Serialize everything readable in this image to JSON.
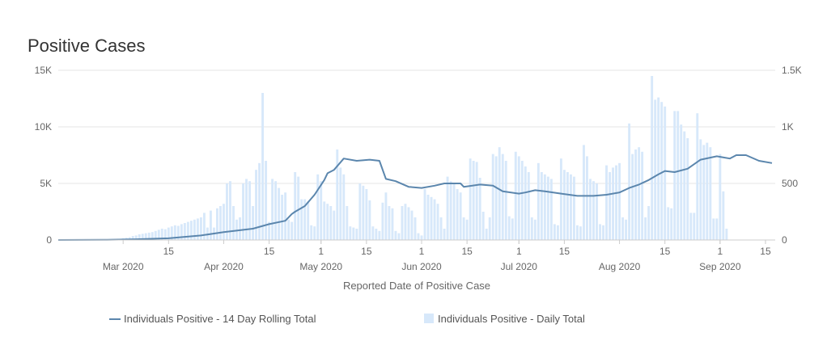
{
  "chart_data": {
    "type": "bar",
    "title": "Positive Cases",
    "xlabel": "Reported Date of Positive Case",
    "x_range": [
      "2020-02-10",
      "2020-09-18"
    ],
    "x_ticks": [
      {
        "date": "2020-03-15",
        "label": "15"
      },
      {
        "date": "2020-04-15",
        "label": "15"
      },
      {
        "date": "2020-05-01",
        "label": "1"
      },
      {
        "date": "2020-05-15",
        "label": "15"
      },
      {
        "date": "2020-06-01",
        "label": "1"
      },
      {
        "date": "2020-06-15",
        "label": "15"
      },
      {
        "date": "2020-07-01",
        "label": "1"
      },
      {
        "date": "2020-07-15",
        "label": "15"
      },
      {
        "date": "2020-08-15",
        "label": "15"
      },
      {
        "date": "2020-09-01",
        "label": "1"
      },
      {
        "date": "2020-09-15",
        "label": "15"
      }
    ],
    "x_month_labels": [
      {
        "date": "2020-03-01",
        "label": "Mar 2020"
      },
      {
        "date": "2020-04-01",
        "label": "Apr 2020"
      },
      {
        "date": "2020-05-01",
        "label": "May 2020"
      },
      {
        "date": "2020-06-01",
        "label": "Jun 2020"
      },
      {
        "date": "2020-07-01",
        "label": "Jul 2020"
      },
      {
        "date": "2020-08-01",
        "label": "Aug 2020"
      },
      {
        "date": "2020-09-01",
        "label": "Sep 2020"
      }
    ],
    "y_left": {
      "min": 0,
      "max": 15000,
      "ticks": [
        0,
        5000,
        10000,
        15000
      ],
      "tick_labels": [
        "0",
        "5K",
        "10K",
        "15K"
      ]
    },
    "y_right": {
      "min": 0,
      "max": 1500,
      "ticks": [
        0,
        500,
        1000,
        1500
      ],
      "tick_labels": [
        "0",
        "500",
        "1K",
        "1.5K"
      ]
    },
    "grid": true,
    "legend_position": "bottom-center",
    "series": [
      {
        "name": "Individuals Positive - 14 Day Rolling Total",
        "type": "line",
        "axis": "left",
        "color": "#5b86ad",
        "points": [
          [
            "2020-02-10",
            0
          ],
          [
            "2020-02-25",
            20
          ],
          [
            "2020-03-05",
            60
          ],
          [
            "2020-03-15",
            150
          ],
          [
            "2020-03-25",
            400
          ],
          [
            "2020-04-01",
            700
          ],
          [
            "2020-04-10",
            1000
          ],
          [
            "2020-04-15",
            1400
          ],
          [
            "2020-04-20",
            1700
          ],
          [
            "2020-04-23",
            2500
          ],
          [
            "2020-04-26",
            3000
          ],
          [
            "2020-04-29",
            4000
          ],
          [
            "2020-04-22",
            2300
          ],
          [
            "2020-05-02",
            5300
          ],
          [
            "2020-05-03",
            5900
          ],
          [
            "2020-05-05",
            6200
          ],
          [
            "2020-05-08",
            7200
          ],
          [
            "2020-05-12",
            7000
          ],
          [
            "2020-05-16",
            7100
          ],
          [
            "2020-05-19",
            7000
          ],
          [
            "2020-05-21",
            5400
          ],
          [
            "2020-05-24",
            5200
          ],
          [
            "2020-05-28",
            4700
          ],
          [
            "2020-06-01",
            4600
          ],
          [
            "2020-06-05",
            4800
          ],
          [
            "2020-06-08",
            5000
          ],
          [
            "2020-06-13",
            5000
          ],
          [
            "2020-06-14",
            4700
          ],
          [
            "2020-06-19",
            4900
          ],
          [
            "2020-06-23",
            4800
          ],
          [
            "2020-06-26",
            4300
          ],
          [
            "2020-07-01",
            4100
          ],
          [
            "2020-07-03",
            4200
          ],
          [
            "2020-07-06",
            4400
          ],
          [
            "2020-07-09",
            4300
          ],
          [
            "2020-07-14",
            4100
          ],
          [
            "2020-07-19",
            3900
          ],
          [
            "2020-07-24",
            3900
          ],
          [
            "2020-07-28",
            4000
          ],
          [
            "2020-08-01",
            4200
          ],
          [
            "2020-08-04",
            4600
          ],
          [
            "2020-08-07",
            4900
          ],
          [
            "2020-08-10",
            5300
          ],
          [
            "2020-08-13",
            5800
          ],
          [
            "2020-08-15",
            6100
          ],
          [
            "2020-08-18",
            6000
          ],
          [
            "2020-08-22",
            6300
          ],
          [
            "2020-08-26",
            7100
          ],
          [
            "2020-08-31",
            7400
          ],
          [
            "2020-09-04",
            7200
          ],
          [
            "2020-09-06",
            7500
          ],
          [
            "2020-09-09",
            7500
          ],
          [
            "2020-09-13",
            7000
          ],
          [
            "2020-09-17",
            6800
          ]
        ]
      },
      {
        "name": "Individuals Positive - Daily Total",
        "type": "bar",
        "axis": "right",
        "color": "#d7e8fa",
        "start_date": "2020-02-27",
        "values": [
          5,
          8,
          10,
          15,
          20,
          25,
          35,
          40,
          50,
          55,
          60,
          65,
          70,
          80,
          90,
          100,
          95,
          110,
          120,
          130,
          125,
          140,
          150,
          160,
          170,
          180,
          190,
          200,
          240,
          110,
          260,
          110,
          280,
          300,
          320,
          500,
          520,
          300,
          180,
          200,
          500,
          540,
          520,
          300,
          620,
          680,
          1300,
          700,
          160,
          540,
          520,
          460,
          400,
          420,
          180,
          160,
          600,
          560,
          360,
          360,
          340,
          130,
          120,
          580,
          520,
          340,
          320,
          300,
          260,
          800,
          640,
          580,
          300,
          120,
          110,
          100,
          500,
          480,
          450,
          350,
          120,
          100,
          80,
          330,
          420,
          300,
          280,
          80,
          60,
          300,
          320,
          290,
          260,
          200,
          60,
          40,
          450,
          400,
          380,
          360,
          320,
          200,
          100,
          560,
          520,
          500,
          450,
          420,
          200,
          180,
          720,
          700,
          690,
          550,
          250,
          100,
          200,
          760,
          740,
          820,
          760,
          700,
          210,
          190,
          780,
          740,
          700,
          650,
          600,
          200,
          180,
          680,
          600,
          580,
          560,
          540,
          140,
          130,
          720,
          620,
          600,
          580,
          560,
          130,
          120,
          840,
          740,
          540,
          520,
          500,
          140,
          130,
          660,
          600,
          640,
          660,
          680,
          200,
          180,
          1030,
          760,
          800,
          820,
          780,
          200,
          300,
          1450,
          1240,
          1260,
          1220,
          1180,
          290,
          280,
          1140,
          1140,
          1020,
          960,
          900,
          240,
          240,
          1120,
          890,
          840,
          860,
          820,
          190,
          190,
          760,
          430,
          100
        ]
      }
    ]
  }
}
